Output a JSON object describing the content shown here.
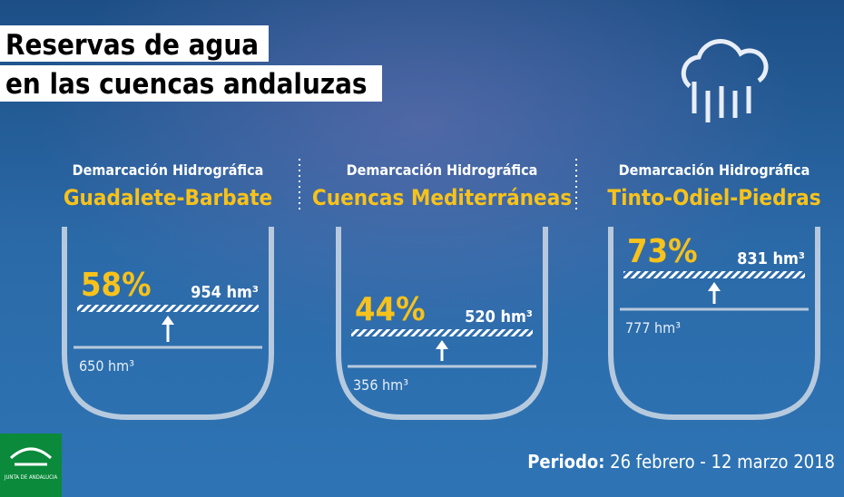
{
  "header": {
    "title_lines": [
      "Reservas de agua",
      "en las cuencas andaluzas"
    ]
  },
  "basins": [
    {
      "label": "Demarcación Hidrográfica",
      "name": "Guadalete-Barbate",
      "percent": "58%",
      "current": "954 hm³",
      "previous": "650 hm³"
    },
    {
      "label": "Demarcación Hidrográfica",
      "name": "Cuencas Mediterráneas",
      "percent": "44%",
      "current": "520 hm³",
      "previous": "356 hm³"
    },
    {
      "label": "Demarcación Hidrográfica",
      "name": "Tinto-Odiel-Piedras",
      "percent": "73%",
      "current": "831 hm³",
      "previous": "777 hm³"
    }
  ],
  "footer": {
    "period_label": "Periodo:",
    "period": "26 febrero - 12 marzo 2018",
    "logo": "JUNTA DE ANDALUCIA"
  }
}
